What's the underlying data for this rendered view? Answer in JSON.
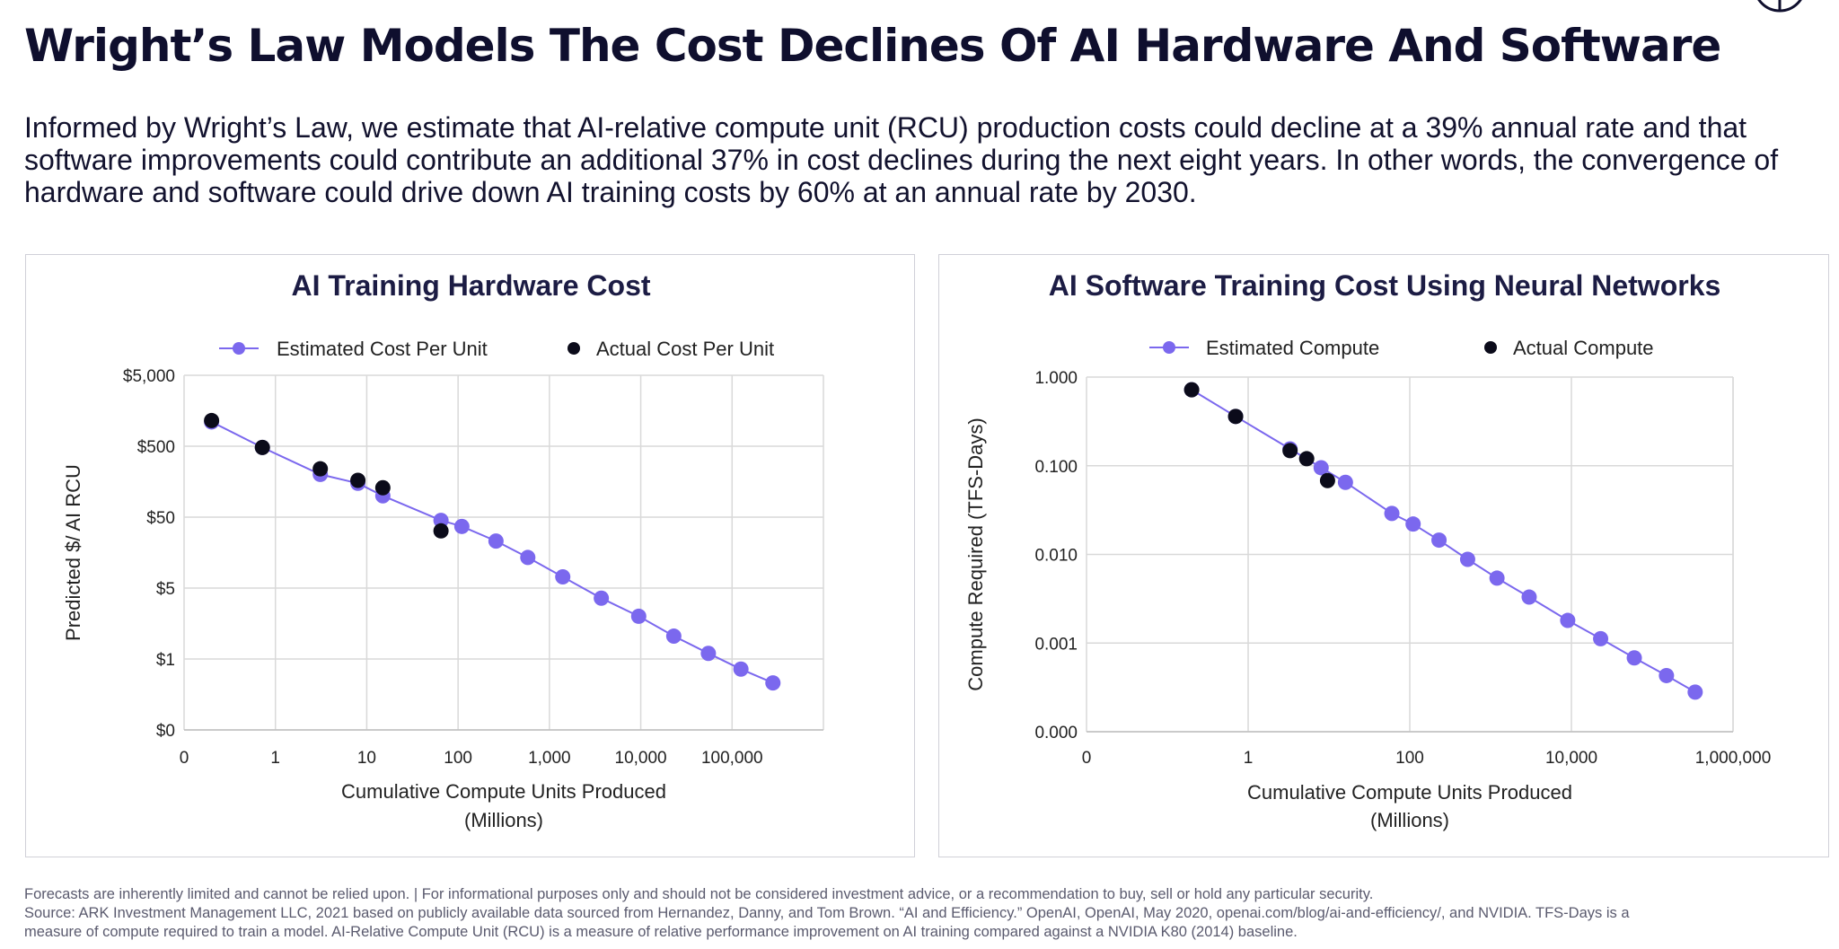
{
  "header": {
    "title": "Wright’s Law Models The Cost Declines Of AI Hardware And Software",
    "subtitle": "Informed by Wright’s Law, we estimate that AI-relative compute unit (RCU) production costs could decline at a 39% annual rate and that software improvements could contribute an additional 37% in cost declines during the next eight years. In other words, the convergence of hardware and software could drive down AI training costs by 60% at an annual rate by 2030."
  },
  "footer": {
    "line1": "Forecasts are inherently limited and cannot be relied upon. | For informational purposes only and should not be considered investment advice, or a recommendation to buy, sell or hold any particular security.",
    "line2": "Source: ARK Investment Management LLC, 2021 based on publicly available data sourced from Hernandez, Danny, and Tom Brown. “AI and Efficiency.” OpenAI, OpenAI, May 2020, openai.com/blog/ai-and-efficiency/, and NVIDIA. TFS-Days is a",
    "line3": "measure of compute required to train a model. AI-Relative Compute Unit (RCU) is a measure of relative performance improvement on AI training compared against a NVIDIA K80 (2014) baseline."
  },
  "colors": {
    "estimated": "#7b68ee",
    "actual": "#0b0b1a",
    "grid": "#d9d9d9"
  },
  "chart_data": [
    {
      "type": "scatter",
      "title": "AI Training Hardware Cost",
      "xlabel": "Cumulative Compute Units Produced",
      "xlabel2": "(Millions)",
      "ylabel": "Predicted $/ AI RCU",
      "x_scale": "log",
      "y_scale": "log",
      "x_ticks": [
        {
          "v": 0.1,
          "label": "0"
        },
        {
          "v": 1,
          "label": "1"
        },
        {
          "v": 10,
          "label": "10"
        },
        {
          "v": 100,
          "label": "100"
        },
        {
          "v": 1000,
          "label": "1,000"
        },
        {
          "v": 10000,
          "label": "10,000"
        },
        {
          "v": 100000,
          "label": "100,000"
        }
      ],
      "xlim": [
        0.1,
        1000000
      ],
      "y_ticks": [
        {
          "v": 0.05,
          "label": "$0"
        },
        {
          "v": 0.5,
          "label": "$1"
        },
        {
          "v": 5,
          "label": "$5"
        },
        {
          "v": 50,
          "label": "$50"
        },
        {
          "v": 500,
          "label": "$500"
        },
        {
          "v": 5000,
          "label": "$5,000"
        }
      ],
      "ylim": [
        0.05,
        5000
      ],
      "series": [
        {
          "name": "Estimated Cost Per Unit",
          "style": "line-markers",
          "points": [
            [
              0.2,
              1100
            ],
            [
              0.72,
              480
            ],
            [
              3.1,
              200
            ],
            [
              8,
              150
            ],
            [
              15,
              100
            ],
            [
              65,
              45
            ],
            [
              110,
              37
            ],
            [
              260,
              23
            ],
            [
              580,
              13.5
            ],
            [
              1400,
              7.2
            ],
            [
              3700,
              3.6
            ],
            [
              9500,
              2.0
            ],
            [
              23000,
              1.05
            ],
            [
              55000,
              0.6
            ],
            [
              125000,
              0.36
            ],
            [
              280000,
              0.23
            ]
          ]
        },
        {
          "name": "Actual Cost Per Unit",
          "style": "markers",
          "points": [
            [
              0.2,
              1150
            ],
            [
              0.72,
              480
            ],
            [
              3.1,
              240
            ],
            [
              8,
              165
            ],
            [
              15,
              130
            ],
            [
              65,
              32
            ]
          ]
        }
      ]
    },
    {
      "type": "scatter",
      "title": "AI Software Training Cost Using Neural Networks",
      "xlabel": "Cumulative Compute Units Produced",
      "xlabel2": "(Millions)",
      "ylabel": "Compute Required (TFS-Days)",
      "x_scale": "log",
      "y_scale": "log",
      "x_ticks": [
        {
          "v": 0.01,
          "label": "0"
        },
        {
          "v": 1,
          "label": "1"
        },
        {
          "v": 100,
          "label": "100"
        },
        {
          "v": 10000,
          "label": "10,000"
        },
        {
          "v": 1000000,
          "label": "1,000,000"
        }
      ],
      "xlim": [
        0.01,
        1000000
      ],
      "y_ticks": [
        {
          "v": 0.0001,
          "label": "0.000"
        },
        {
          "v": 0.001,
          "label": "0.001"
        },
        {
          "v": 0.01,
          "label": "0.010"
        },
        {
          "v": 0.1,
          "label": "0.100"
        },
        {
          "v": 1,
          "label": "1.000"
        }
      ],
      "ylim": [
        0.0001,
        1
      ],
      "series": [
        {
          "name": "Estimated Compute",
          "style": "line-markers",
          "points": [
            [
              0.2,
              0.72
            ],
            [
              0.7,
              0.36
            ],
            [
              3.3,
              0.155
            ],
            [
              8,
              0.095
            ],
            [
              16,
              0.065
            ],
            [
              60,
              0.029
            ],
            [
              110,
              0.022
            ],
            [
              230,
              0.0145
            ],
            [
              520,
              0.0088
            ],
            [
              1200,
              0.0054
            ],
            [
              3000,
              0.0033
            ],
            [
              9000,
              0.0018
            ],
            [
              23000,
              0.00112
            ],
            [
              60000,
              0.00068
            ],
            [
              150000,
              0.00043
            ],
            [
              340000,
              0.00028
            ]
          ]
        },
        {
          "name": "Actual Compute",
          "style": "markers",
          "points": [
            [
              0.2,
              0.72
            ],
            [
              0.7,
              0.36
            ],
            [
              3.3,
              0.148
            ],
            [
              5.3,
              0.12
            ],
            [
              9.6,
              0.068
            ]
          ]
        }
      ]
    }
  ]
}
